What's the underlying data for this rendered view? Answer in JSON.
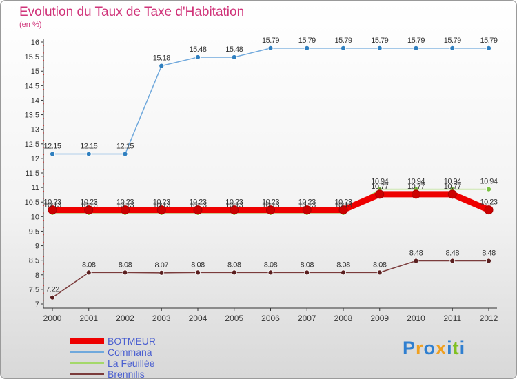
{
  "header": {
    "title": "Evolution du Taux de Taxe d'Habitation",
    "subtitle": "(en %)"
  },
  "brand": {
    "text": "Proxiti",
    "colors": [
      "#2f7fd0",
      "#f0a020",
      "#2f7fd0",
      "#f0a020",
      "#2f7fd0",
      "#80c020",
      "#2f7fd0"
    ]
  },
  "colors": {
    "title": "#d0347a",
    "legend_text": "#4a5fd0",
    "axis": "#333333"
  },
  "chart_data": {
    "type": "line",
    "title": "Evolution du Taux de Taxe d'Habitation",
    "ylabel": "(en %)",
    "xlabel": "",
    "x": [
      "2000",
      "2001",
      "2002",
      "2003",
      "2004",
      "2005",
      "2006",
      "2007",
      "2008",
      "2009",
      "2010",
      "2011",
      "2012"
    ],
    "ylim": [
      7,
      16
    ],
    "yticks": [
      "7",
      "7.5",
      "8",
      "8.5",
      "9",
      "9.5",
      "10",
      "10.5",
      "11",
      "11.5",
      "12",
      "12.5",
      "13",
      "13.5",
      "14",
      "14.5",
      "15",
      "15.5",
      "16"
    ],
    "grid": false,
    "legend_position": "bottom-left",
    "series": [
      {
        "name": "BOTMEUR",
        "color": "#ee0000",
        "marker": "#cc0000",
        "values": [
          10.23,
          10.23,
          10.23,
          10.23,
          10.23,
          10.23,
          10.23,
          10.23,
          10.23,
          10.77,
          10.77,
          10.77,
          10.23
        ],
        "labels": [
          "10.23",
          "10.23",
          "10.23",
          "10.23",
          "10.23",
          "10.23",
          "10.23",
          "10.23",
          "10.23",
          "10.77",
          "10.77",
          "10.77",
          "10.23"
        ]
      },
      {
        "name": "Commana",
        "color": "#6fa8dc",
        "marker": "#2f7fbf",
        "values": [
          12.15,
          12.15,
          12.15,
          15.18,
          15.48,
          15.48,
          15.79,
          15.79,
          15.79,
          15.79,
          15.79,
          15.79,
          15.79
        ],
        "labels": [
          "12.15",
          "12.15",
          "12.15",
          "15.18",
          "15.48",
          "15.48",
          "15.79",
          "15.79",
          "15.79",
          "15.79",
          "15.79",
          "15.79",
          "15.79"
        ]
      },
      {
        "name": "La Feuillée",
        "color": "#a4d86a",
        "marker": "#7ac142",
        "values": [
          10.13,
          10.13,
          10.13,
          10.13,
          10.13,
          10.13,
          10.13,
          10.13,
          10.13,
          10.94,
          10.94,
          10.94,
          10.94
        ],
        "labels": [
          "10.13",
          "10.13",
          "10.13",
          "10.13",
          "10.13",
          "10.13",
          "10.13",
          "10.13",
          "10.13",
          "10.94",
          "10.94",
          "10.94",
          "10.94"
        ]
      },
      {
        "name": "Brennilis",
        "color": "#7a3b3b",
        "marker": "#5a1f1f",
        "values": [
          7.22,
          8.08,
          8.08,
          8.07,
          8.08,
          8.08,
          8.08,
          8.08,
          8.08,
          8.08,
          8.48,
          8.48,
          8.48
        ],
        "labels": [
          "7.22",
          "8.08",
          "8.08",
          "8.07",
          "8.08",
          "8.08",
          "8.08",
          "8.08",
          "8.08",
          "8.08",
          "8.48",
          "8.48",
          "8.48"
        ]
      }
    ]
  }
}
